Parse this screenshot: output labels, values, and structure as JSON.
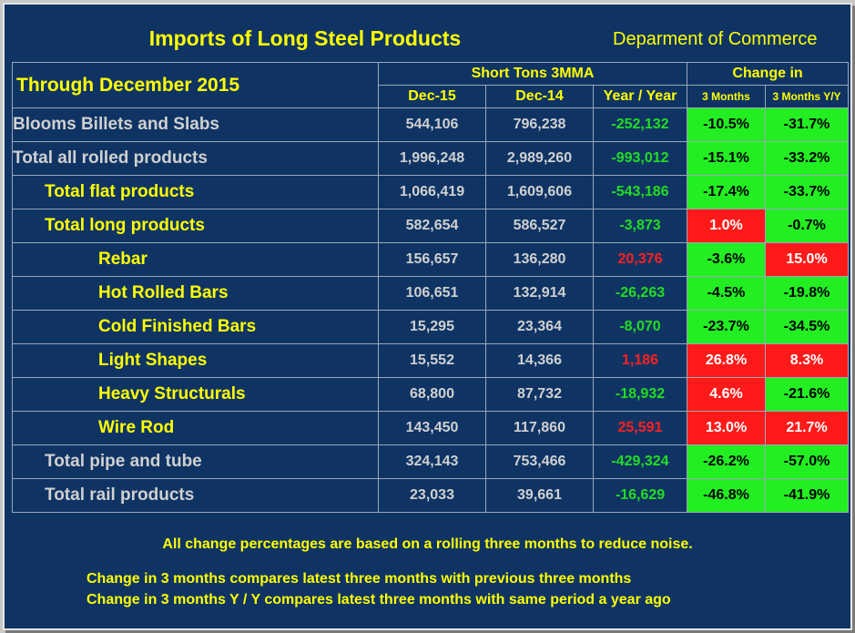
{
  "header": {
    "title": "Imports of Long Steel Products",
    "source": "Deparment of Commerce",
    "period": "Through December 2015",
    "group_tons": "Short Tons 3MMA",
    "group_change": "Change in",
    "col_dec15": "Dec-15",
    "col_dec14": "Dec-14",
    "col_yoy": "Year / Year",
    "col_3m": "3 Months",
    "col_3my": "3 Months Y/Y"
  },
  "rows": [
    {
      "label": "Blooms Billets and Slabs",
      "dec15": "544,106",
      "dec14": "796,238",
      "yoy": "-252,132",
      "m3": "-10.5%",
      "m3y": "-31.7%"
    },
    {
      "label": "Total all rolled products",
      "dec15": "1,996,248",
      "dec14": "2,989,260",
      "yoy": "-993,012",
      "m3": "-15.1%",
      "m3y": "-33.2%"
    },
    {
      "label": "Total flat products",
      "dec15": "1,066,419",
      "dec14": "1,609,606",
      "yoy": "-543,186",
      "m3": "-17.4%",
      "m3y": "-33.7%"
    },
    {
      "label": "Total long products",
      "dec15": "582,654",
      "dec14": "586,527",
      "yoy": "-3,873",
      "m3": "1.0%",
      "m3y": "-0.7%"
    },
    {
      "label": "Rebar",
      "dec15": "156,657",
      "dec14": "136,280",
      "yoy": "20,376",
      "m3": "-3.6%",
      "m3y": "15.0%"
    },
    {
      "label": "Hot Rolled Bars",
      "dec15": "106,651",
      "dec14": "132,914",
      "yoy": "-26,263",
      "m3": "-4.5%",
      "m3y": "-19.8%"
    },
    {
      "label": "Cold Finished Bars",
      "dec15": "15,295",
      "dec14": "23,364",
      "yoy": "-8,070",
      "m3": "-23.7%",
      "m3y": "-34.5%"
    },
    {
      "label": "Light Shapes",
      "dec15": "15,552",
      "dec14": "14,366",
      "yoy": "1,186",
      "m3": "26.8%",
      "m3y": "8.3%"
    },
    {
      "label": "Heavy Structurals",
      "dec15": "68,800",
      "dec14": "87,732",
      "yoy": "-18,932",
      "m3": "4.6%",
      "m3y": "-21.6%"
    },
    {
      "label": "Wire Rod",
      "dec15": "143,450",
      "dec14": "117,860",
      "yoy": "25,591",
      "m3": "13.0%",
      "m3y": "21.7%"
    },
    {
      "label": "Total pipe and tube",
      "dec15": "324,143",
      "dec14": "753,466",
      "yoy": "-429,324",
      "m3": "-26.2%",
      "m3y": "-57.0%"
    },
    {
      "label": "Total rail products",
      "dec15": "23,033",
      "dec14": "39,661",
      "yoy": "-16,629",
      "m3": "-46.8%",
      "m3y": "-41.9%"
    }
  ],
  "notes": {
    "line1": "All change percentages are based on a rolling three months to reduce noise.",
    "line2": "Change in 3 months compares latest three months with previous three months",
    "line3": "Change in 3 months  Y / Y compares latest three months with same period a year ago"
  },
  "colors": {
    "background": "#0f3464",
    "text_yellow": "#ffff00",
    "neg_green": "#22dd22",
    "pos_red": "#ff2020",
    "cell_green": "#22ee22",
    "cell_red": "#ff1a1a"
  }
}
